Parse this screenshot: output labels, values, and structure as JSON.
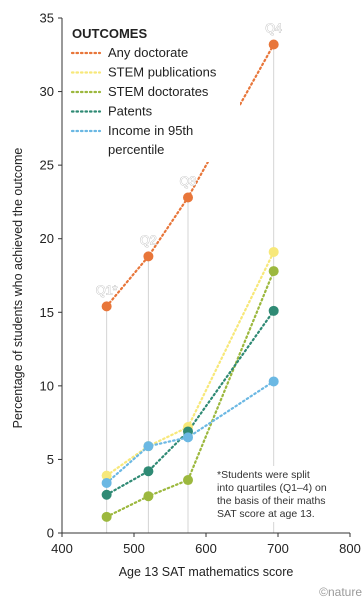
{
  "chart_data": {
    "type": "line",
    "xlabel": "Age 13 SAT mathematics score",
    "ylabel": "Percentage of students who achieved the outcome",
    "xlim": [
      400,
      800
    ],
    "ylim": [
      0,
      35
    ],
    "xticks": [
      400,
      500,
      600,
      700,
      800
    ],
    "yticks": [
      0,
      5,
      10,
      15,
      20,
      25,
      30,
      35
    ],
    "grid": false,
    "legend": {
      "title": "OUTCOMES",
      "placement": "top-left",
      "entries": [
        "Any doctorate",
        "STEM publications",
        "STEM doctorates",
        "Patents",
        "Income in 95th percentile"
      ]
    },
    "x": [
      462,
      520,
      575,
      694
    ],
    "quartile_labels": [
      "Q1*",
      "Q2",
      "Q3",
      "Q4"
    ],
    "series": [
      {
        "name": "Any doctorate",
        "color": "#e8763a",
        "values": [
          15.4,
          18.8,
          22.8,
          33.2
        ]
      },
      {
        "name": "STEM publications",
        "color": "#f7e87a",
        "values": [
          3.9,
          5.9,
          7.2,
          19.1
        ]
      },
      {
        "name": "STEM doctorates",
        "color": "#9cb83e",
        "values": [
          1.1,
          2.5,
          3.6,
          17.8
        ]
      },
      {
        "name": "Patents",
        "color": "#2f8a74",
        "values": [
          2.6,
          4.2,
          6.9,
          15.1
        ]
      },
      {
        "name": "Income in 95th percentile",
        "color": "#6bb8e3",
        "values": [
          3.4,
          5.9,
          6.5,
          10.3
        ]
      }
    ],
    "annotation": "*Students were split into quartiles (Q1–4) on the basis of their maths SAT score at age 13."
  },
  "credit": "©nature"
}
